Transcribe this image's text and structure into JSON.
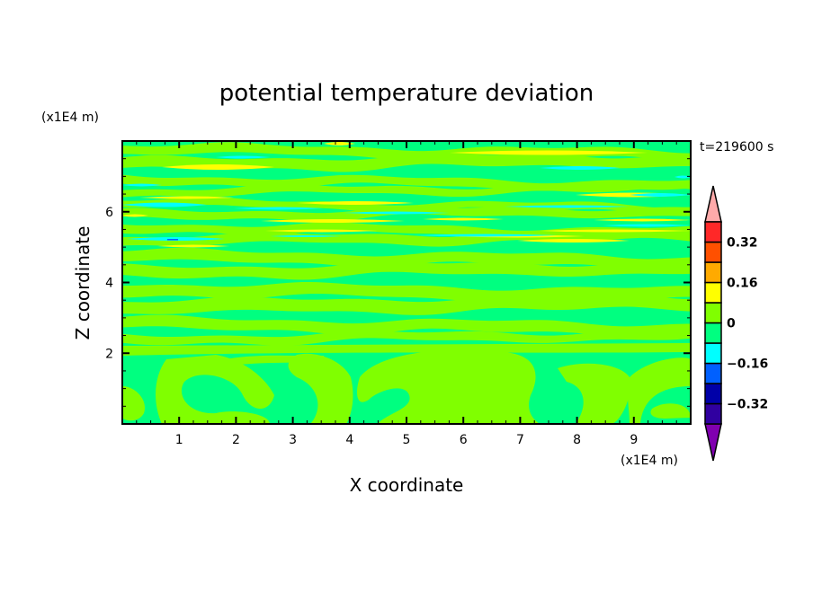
{
  "chart_data": {
    "type": "heatmap",
    "style": "filled contour",
    "title": "potential temperature deviation",
    "xlabel": "X coordinate",
    "ylabel": "Z coordinate",
    "x_unit": "(x1E4 m)",
    "y_unit": "(x1E4 m)",
    "time_label": "t=219600 s",
    "xlim": [
      0,
      10
    ],
    "ylim": [
      0,
      8
    ],
    "x_ticks": [
      "1",
      "2",
      "3",
      "4",
      "5",
      "6",
      "7",
      "8",
      "9"
    ],
    "y_ticks": [
      "2",
      "4",
      "6"
    ],
    "colorbar": {
      "levels": [
        -0.4,
        -0.32,
        -0.24,
        -0.16,
        -0.08,
        0,
        0.08,
        0.16,
        0.24,
        0.32,
        0.4
      ],
      "labels": [
        "0.32",
        "0.16",
        "0",
        "-0.16",
        "-0.32"
      ],
      "label_values": [
        0.32,
        0.16,
        0,
        -0.16,
        -0.32
      ],
      "colors": [
        "#3000a0",
        "#0000a8",
        "#0060ff",
        "#00ffff",
        "#00ff80",
        "#80ff00",
        "#ffff00",
        "#ffaa00",
        "#ff5000",
        "#ff2828"
      ],
      "over_color": "#ffaaaa",
      "under_color": "#8000b0",
      "extend": "both"
    },
    "dominant_range": [
      -0.16,
      0.16
    ]
  }
}
